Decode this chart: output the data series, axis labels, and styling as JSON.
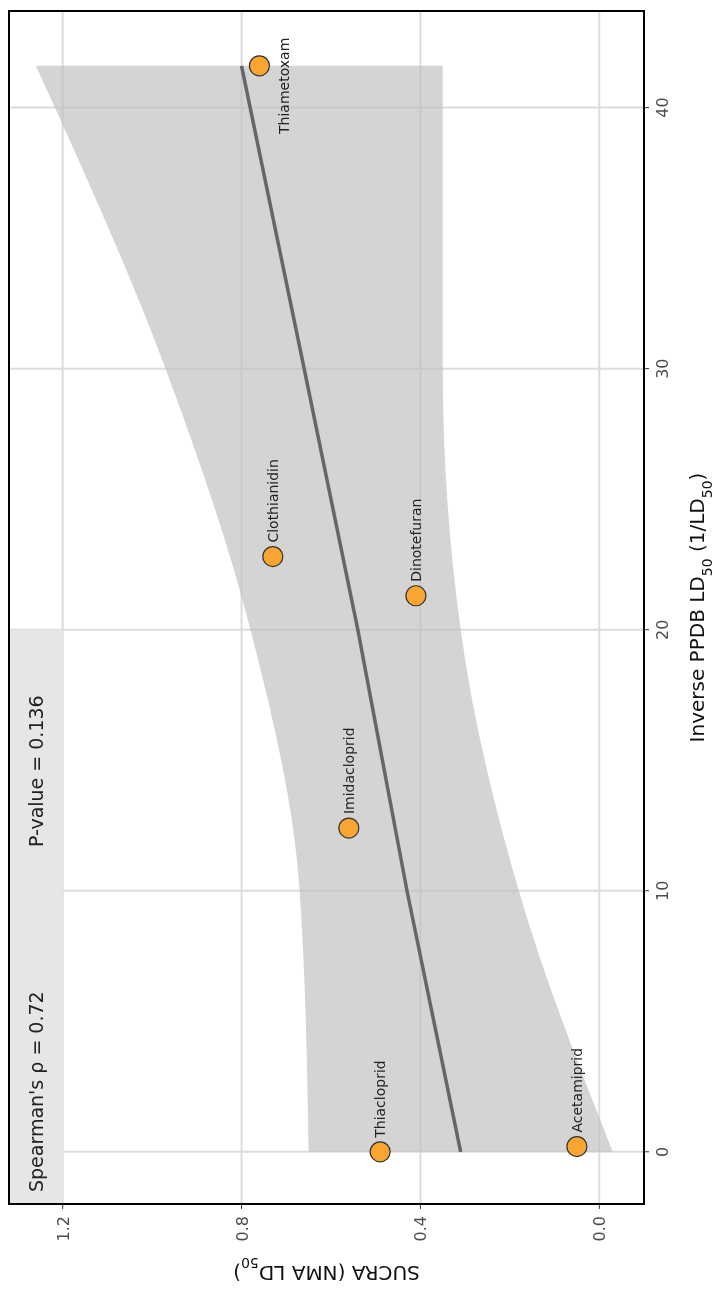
{
  "chart_data": {
    "type": "scatter",
    "orientation": "horizontal",
    "xlabel": "SUCRA (NMA LD$_{50}$)",
    "ylabel": "Inverse PPDB LD$_{50}$ (1/LD$_{50}$)",
    "series": [
      {
        "color": "#f9a531",
        "marker": "circle",
        "x": [
          41.6,
          22.8,
          21.3,
          12.4,
          0,
          0.2
        ],
        "values": [
          0.76,
          0.73,
          0.41,
          0.56,
          0.49,
          0.05
        ]
      },
      {
        "type": "line",
        "color": "#666666",
        "x": [
          0,
          10,
          20,
          30,
          41.6
        ],
        "values": [
          0.31,
          0.43,
          0.54,
          0.66,
          0.8
        ],
        "lower": [
          -0.03,
          0.18,
          0.31,
          0.35,
          0.35
        ],
        "upper": [
          0.65,
          0.67,
          0.78,
          0.97,
          1.26
        ]
      }
    ],
    "xlim": [
      1.32,
      -0.1
    ],
    "xticks": [
      1.2,
      0.8,
      0.4,
      {
        "value": 0,
        "label": "0.0"
      }
    ],
    "ylim": [
      -2,
      43.7
    ],
    "yticks": [
      0,
      10,
      20,
      30,
      40
    ],
    "grid": true,
    "legend": false,
    "annotations": [
      "Spearman's ρ = 0.72",
      "P-value = 0.136",
      {
        "text": "Thiametoxam",
        "x": 0.76,
        "y": 41.6
      },
      {
        "text": "Clothianidin",
        "x": 0.73,
        "y": 22.8
      },
      {
        "text": "Dinotefuran",
        "x": 0.41,
        "y": 21.3
      },
      {
        "text": "Imidacloprid",
        "x": 0.56,
        "y": 12.4
      },
      {
        "text": "Thiacloprid",
        "x": 0.49,
        "y": 0
      },
      {
        "text": "Acetamiprid",
        "x": 0.05,
        "y": 0.2
      }
    ]
  }
}
